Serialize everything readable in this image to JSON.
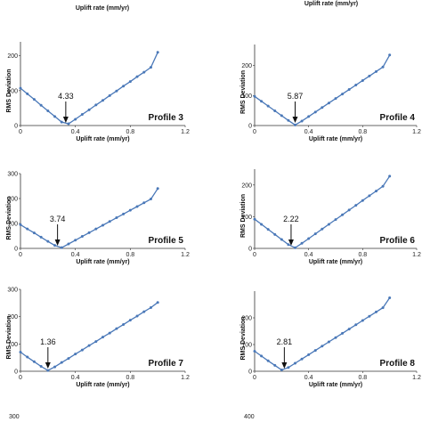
{
  "top_labels": [
    "Uplift rate (mm/yr)",
    "Uplift rate (mm/yr)"
  ],
  "bottom_partial_ticks": [
    "300",
    "400"
  ],
  "series_color": "#4a78b8",
  "chart_data": [
    {
      "type": "line",
      "label": "Profile 3",
      "xlabel": "Uplift rate (mm/yr)",
      "ylabel": "RMS Deviation",
      "xlim": [
        0,
        1.2
      ],
      "ylim": [
        0,
        240
      ],
      "xticks": [
        "0",
        "0.4",
        "0.8",
        "1.2"
      ],
      "yticks": [
        "0",
        "100",
        "200"
      ],
      "x": [
        0,
        0.05,
        0.1,
        0.15,
        0.2,
        0.25,
        0.3,
        0.35,
        0.4,
        0.45,
        0.5,
        0.55,
        0.6,
        0.65,
        0.7,
        0.75,
        0.8,
        0.85,
        0.9,
        0.95,
        1.0
      ],
      "y": [
        107,
        91,
        75,
        58,
        42,
        26,
        10,
        5,
        18,
        32,
        45,
        59,
        72,
        86,
        99,
        113,
        126,
        140,
        153,
        167,
        210
      ],
      "annotation": {
        "text": "4.33",
        "x": 0.33
      }
    },
    {
      "type": "line",
      "label": "Profile 4",
      "xlabel": "Uplift rate (mm/yr)",
      "ylabel": "RMS Deviation",
      "xlim": [
        0,
        1.2
      ],
      "ylim": [
        0,
        270
      ],
      "xticks": [
        "0",
        "0.4",
        "0.8",
        "1.2"
      ],
      "yticks": [
        "0",
        "100",
        "200"
      ],
      "x": [
        0,
        0.05,
        0.1,
        0.15,
        0.2,
        0.25,
        0.3,
        0.35,
        0.4,
        0.45,
        0.5,
        0.55,
        0.6,
        0.65,
        0.7,
        0.75,
        0.8,
        0.85,
        0.9,
        0.95,
        1.0
      ],
      "y": [
        97,
        81,
        65,
        49,
        33,
        17,
        2,
        15,
        30,
        45,
        60,
        75,
        90,
        105,
        120,
        135,
        150,
        165,
        180,
        195,
        235
      ],
      "annotation": {
        "text": "5.87",
        "x": 0.3
      }
    },
    {
      "type": "line",
      "label": "Profile 5",
      "xlabel": "Uplift rate (mm/yr)",
      "ylabel": "RMS Deviation",
      "xlim": [
        0,
        1.2
      ],
      "ylim": [
        0,
        300
      ],
      "xticks": [
        "0",
        "0.4",
        "0.8",
        "1.2"
      ],
      "yticks": [
        "0",
        "100",
        "200",
        "300"
      ],
      "x": [
        0,
        0.05,
        0.1,
        0.15,
        0.2,
        0.25,
        0.3,
        0.35,
        0.4,
        0.45,
        0.5,
        0.55,
        0.6,
        0.65,
        0.7,
        0.75,
        0.8,
        0.85,
        0.9,
        0.95,
        1.0
      ],
      "y": [
        95,
        78,
        62,
        45,
        28,
        12,
        3,
        18,
        33,
        48,
        63,
        78,
        93,
        108,
        123,
        138,
        153,
        168,
        183,
        198,
        240
      ],
      "annotation": {
        "text": "3.74",
        "x": 0.27
      }
    },
    {
      "type": "line",
      "label": "Profile 6",
      "xlabel": "Uplift rate (mm/yr)",
      "ylabel": "RMS Deviation",
      "xlim": [
        0,
        1.2
      ],
      "ylim": [
        0,
        250
      ],
      "xticks": [
        "0",
        "0.4",
        "0.8",
        "1.2"
      ],
      "yticks": [
        "0",
        "100",
        "200"
      ],
      "x": [
        0,
        0.05,
        0.1,
        0.15,
        0.2,
        0.25,
        0.3,
        0.35,
        0.4,
        0.45,
        0.5,
        0.55,
        0.6,
        0.65,
        0.7,
        0.75,
        0.8,
        0.85,
        0.9,
        0.95,
        1.0
      ],
      "y": [
        92,
        76,
        60,
        44,
        28,
        12,
        2,
        16,
        31,
        46,
        61,
        76,
        91,
        106,
        121,
        136,
        151,
        166,
        181,
        196,
        228
      ],
      "annotation": {
        "text": "2.22",
        "x": 0.27
      }
    },
    {
      "type": "line",
      "label": "Profile 7",
      "xlabel": "Uplift rate (mm/yr)",
      "ylabel": "RMS Deviation",
      "xlim": [
        0,
        1.2
      ],
      "ylim": [
        0,
        300
      ],
      "xticks": [
        "0",
        "0.4",
        "0.8",
        "1.2"
      ],
      "yticks": [
        "0",
        "100",
        "200",
        "300"
      ],
      "x": [
        0,
        0.05,
        0.1,
        0.15,
        0.2,
        0.25,
        0.3,
        0.35,
        0.4,
        0.45,
        0.5,
        0.55,
        0.6,
        0.65,
        0.7,
        0.75,
        0.8,
        0.85,
        0.9,
        0.95,
        1.0
      ],
      "y": [
        70,
        52,
        35,
        18,
        3,
        16,
        32,
        47,
        63,
        78,
        94,
        109,
        125,
        140,
        156,
        171,
        187,
        202,
        218,
        233,
        252
      ],
      "annotation": {
        "text": "1.36",
        "x": 0.2
      }
    },
    {
      "type": "line",
      "label": "Profile 8",
      "xlabel": "Uplift rate (mm/yr)",
      "ylabel": "RMS Deviation",
      "xlim": [
        0,
        1.2
      ],
      "ylim": [
        0,
        300
      ],
      "xticks": [
        "0",
        "0.4",
        "0.8",
        "1.2"
      ],
      "yticks": [
        "0",
        "100",
        "200"
      ],
      "x": [
        0,
        0.05,
        0.1,
        0.15,
        0.2,
        0.25,
        0.3,
        0.35,
        0.4,
        0.45,
        0.5,
        0.55,
        0.6,
        0.65,
        0.7,
        0.75,
        0.8,
        0.85,
        0.9,
        0.95,
        1.0
      ],
      "y": [
        75,
        57,
        39,
        22,
        5,
        14,
        30,
        46,
        62,
        78,
        94,
        110,
        126,
        142,
        158,
        174,
        190,
        206,
        222,
        238,
        275
      ],
      "annotation": {
        "text": "2.81",
        "x": 0.22
      }
    }
  ]
}
